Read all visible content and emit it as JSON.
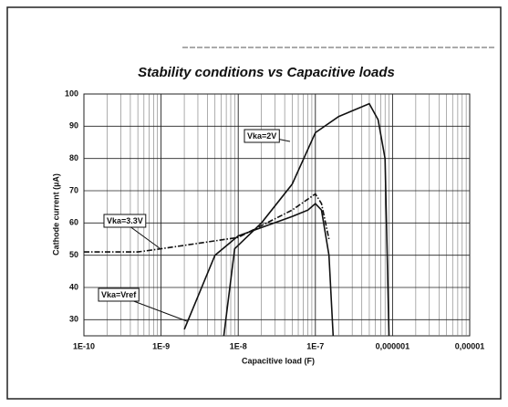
{
  "chart_data": {
    "type": "line",
    "title": "Stability conditions vs Capacitive loads",
    "xlabel": "Capacitive load (F)",
    "ylabel": "Cathode current (µA)",
    "xscale": "log",
    "grid": true,
    "xlim": [
      1e-10,
      1e-05
    ],
    "xticks": [
      {
        "value": 1e-10,
        "label": "1E-10"
      },
      {
        "value": 1e-09,
        "label": "1E-9"
      },
      {
        "value": 1e-08,
        "label": "1E-8"
      },
      {
        "value": 1e-07,
        "label": "1E-7"
      },
      {
        "value": 1e-06,
        "label": "0,000001"
      },
      {
        "value": 1e-05,
        "label": "0,00001"
      }
    ],
    "ylim": [
      25,
      100
    ],
    "yticks": [
      30,
      40,
      50,
      60,
      70,
      80,
      90,
      100
    ],
    "series": [
      {
        "name": "Vka=2V",
        "color": "#111111",
        "line_style": "solid",
        "x": [
          6.5e-09,
          9e-09,
          2e-08,
          5e-08,
          1e-07,
          2e-07,
          5e-07,
          6.5e-07,
          8e-07,
          9e-07
        ],
        "values": [
          25,
          52,
          60,
          72,
          88,
          93,
          97,
          92,
          80,
          25
        ]
      },
      {
        "name": "Vka=3.3V",
        "color": "#111111",
        "line_style": "dash-dot",
        "x": [
          1e-10,
          5e-10,
          1e-09,
          1e-08,
          5e-08,
          1e-07,
          1.2e-07,
          1.5e-07
        ],
        "values": [
          51,
          51,
          52,
          55.5,
          64,
          69,
          66,
          55
        ]
      },
      {
        "name": "Vka=Vref",
        "color": "#111111",
        "line_style": "solid",
        "x": [
          2e-09,
          5e-09,
          1e-08,
          5e-08,
          8e-08,
          1e-07,
          1.2e-07,
          1.5e-07,
          1.7e-07
        ],
        "values": [
          27,
          50,
          56,
          62,
          64,
          66,
          64,
          50,
          25
        ]
      }
    ]
  }
}
